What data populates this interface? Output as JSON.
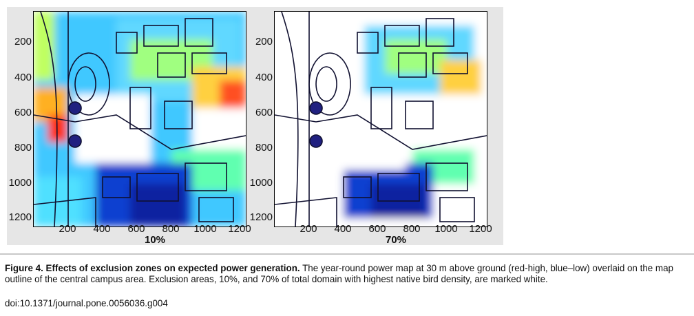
{
  "figure": {
    "panels": [
      {
        "id": "panel-10",
        "label": "10%",
        "exclusion_fraction": 0.1,
        "y_ticks": [
          "200",
          "400",
          "600",
          "800",
          "1000",
          "1200"
        ],
        "x_ticks": [
          "200",
          "400",
          "600",
          "800",
          "1000",
          "1200"
        ]
      },
      {
        "id": "panel-70",
        "label": "70%",
        "exclusion_fraction": 0.7,
        "y_ticks": [
          "200",
          "400",
          "600",
          "800",
          "1000",
          "1200"
        ],
        "x_ticks": [
          "200",
          "400",
          "600",
          "800",
          "1000",
          "1200"
        ]
      }
    ],
    "colormap": [
      "#00008f",
      "#0040ff",
      "#00c0ff",
      "#40ffc0",
      "#c0ff40",
      "#ffc000",
      "#ff4000",
      "#c00000"
    ]
  },
  "caption": {
    "title": "Figure 4. Effects of exclusion zones on expected power generation.",
    "body": " The year-round power map at 30 m above ground (red-high, blue–low) overlaid on the map outline of the central campus area. Exclusion areas, 10%, and 70% of total domain with highest native bird density, are marked white.",
    "doi": "doi:10.1371/journal.pone.0056036.g004"
  }
}
